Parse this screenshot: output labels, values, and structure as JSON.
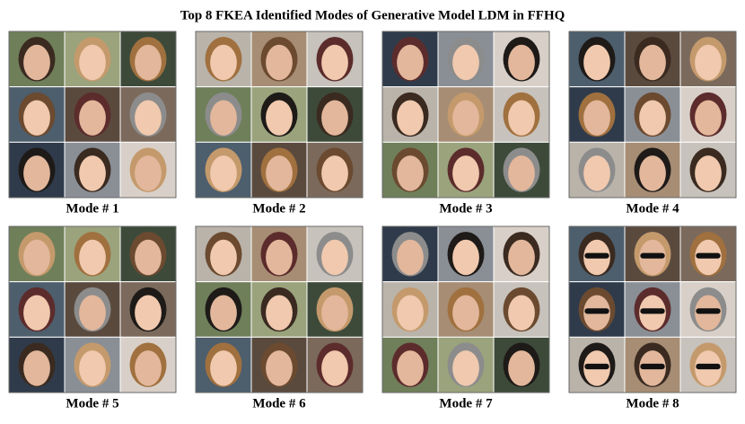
{
  "title": "Top 8 FKEA Identified Modes of Generative Model LDM in FFHQ",
  "modes": [
    "Mode # 1",
    "Mode # 2",
    "Mode # 3",
    "Mode # 4",
    "Mode # 5",
    "Mode # 6",
    "Mode # 7",
    "Mode # 8"
  ]
}
